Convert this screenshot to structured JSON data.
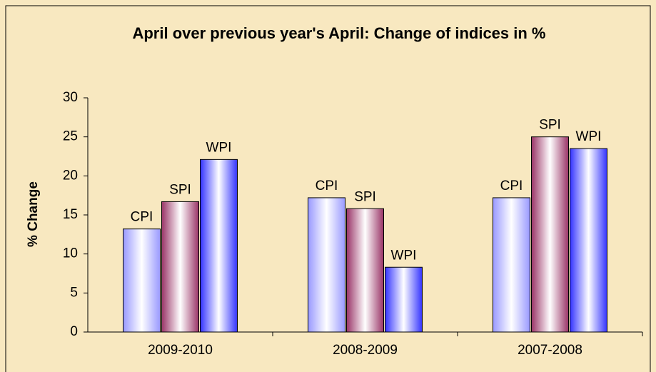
{
  "chart_data": {
    "type": "bar",
    "title": "April over previous year's April: Change of indices in %",
    "y_label": "% Change",
    "categories": [
      "2009-2010",
      "2008-2009",
      "2007-2008"
    ],
    "series": [
      {
        "name": "CPI",
        "color": "#9999ff",
        "values": [
          13.2,
          17.2,
          17.2
        ]
      },
      {
        "name": "SPI",
        "color": "#993366",
        "values": [
          16.7,
          15.8,
          25.0
        ]
      },
      {
        "name": "WPI",
        "color": "#3333ff",
        "values": [
          22.1,
          8.3,
          23.5
        ]
      }
    ],
    "ylim": [
      0,
      30
    ],
    "yticks": [
      0,
      5,
      10,
      15,
      20,
      25,
      30
    ],
    "grid": false
  }
}
